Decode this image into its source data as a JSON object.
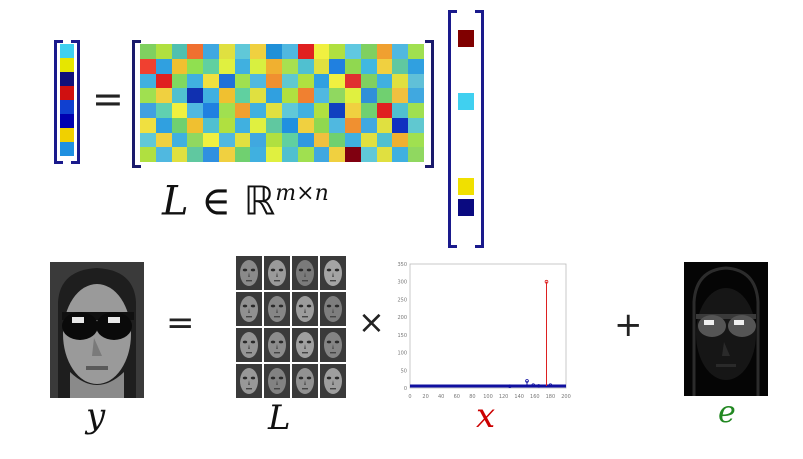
{
  "top_equation": {
    "equals_symbol": "=",
    "matrix_caption_var": "L",
    "matrix_caption_rel": "∈",
    "matrix_caption_space": "ℝ",
    "matrix_caption_exp": "m×n",
    "y_vector_colors": [
      "#3fd0f0",
      "#e6e600",
      "#10107a",
      "#d01010",
      "#1040d0",
      "#0000b0",
      "#f0d000",
      "#2090e0"
    ],
    "x_vector_colors": [
      "#800000",
      "#ffffff",
      "#ffffff",
      "#40d0f0",
      "#ffffff",
      "#ffffff",
      "#ffffff",
      "#f0e000",
      "#0a0a80"
    ],
    "matrix_colors": [
      "#7fd060",
      "#b0e040",
      "#50c0b0",
      "#f07030",
      "#40a8e0",
      "#e0e040",
      "#60c8d8",
      "#f0d040",
      "#2090d8",
      "#50b8e0",
      "#e02020",
      "#f0f040",
      "#b0e040",
      "#60c8e0",
      "#7fd060",
      "#f0a030",
      "#50b8e0",
      "#a0e050",
      "#f04030",
      "#30a0e0",
      "#f0c030",
      "#90e050",
      "#60d0a0",
      "#e0f040",
      "#40b0e0",
      "#d8f040",
      "#f0b030",
      "#a8e050",
      "#50c0d0",
      "#e0e040",
      "#2080e0",
      "#90d850",
      "#40b8e0",
      "#f0d040",
      "#60c8a0",
      "#30a0e0",
      "#40b0e0",
      "#e02020",
      "#80d860",
      "#40b0e0",
      "#f0e040",
      "#2070d8",
      "#a0e050",
      "#50b8e0",
      "#f09030",
      "#60c8d0",
      "#b0e040",
      "#30a0e0",
      "#f0f040",
      "#e03030",
      "#80d060",
      "#40b0e0",
      "#e0e040",
      "#60c0d8",
      "#a0e050",
      "#f0d040",
      "#50c0d0",
      "#1030b0",
      "#40b0e0",
      "#f0c030",
      "#60d0a0",
      "#e0e040",
      "#30a0e0",
      "#b0e040",
      "#f08030",
      "#50b8e0",
      "#90d860",
      "#e0f040",
      "#3090d8",
      "#70d070",
      "#f0c040",
      "#40a8e0",
      "#40a0e0",
      "#60d0b0",
      "#f0f040",
      "#50b8e0",
      "#2080e0",
      "#a0e050",
      "#f0a030",
      "#40b0e0",
      "#e0e040",
      "#60c8d8",
      "#40b0e0",
      "#b0e040",
      "#1040c0",
      "#f0d040",
      "#70d070",
      "#e02020",
      "#50c0d0",
      "#a0e050",
      "#f0e040",
      "#30a0e0",
      "#70d070",
      "#f0c030",
      "#50c0d0",
      "#b0e040",
      "#40b0e0",
      "#e0f040",
      "#60c8a0",
      "#2090e0",
      "#f0d040",
      "#90d850",
      "#50b8e0",
      "#f09030",
      "#40a8e0",
      "#e0e040",
      "#1030c0",
      "#60c8d0",
      "#60c8d8",
      "#f0d040",
      "#40b0e0",
      "#90d860",
      "#f0f040",
      "#50b8e0",
      "#e0e040",
      "#40a8e0",
      "#b0e040",
      "#60d0a0",
      "#3098e0",
      "#f0c040",
      "#70d070",
      "#40b0e0",
      "#e0e040",
      "#50c0d0",
      "#f0b030",
      "#a0e050",
      "#b0e040",
      "#50b8e0",
      "#e0e040",
      "#60c8a0",
      "#3090e0",
      "#f0d040",
      "#70d070",
      "#40b0e0",
      "#e0f040",
      "#50c0d0",
      "#a0e050",
      "#40a8e0",
      "#f0d040",
      "#800010",
      "#60c8d8",
      "#e0e040",
      "#40b0e0",
      "#90d860"
    ]
  },
  "bottom_equation": {
    "equals_symbol": "=",
    "times_symbol": "×",
    "plus_symbol": "+",
    "y_label": "y",
    "L_label": "L",
    "x_label": "x",
    "e_label": "e",
    "x_label_color": "#cc0000",
    "e_label_color": "#228822"
  },
  "chart_data": {
    "type": "scatter",
    "title": "",
    "xlabel": "",
    "ylabel": "",
    "xlim": [
      0,
      200
    ],
    "ylim": [
      0,
      350
    ],
    "x_ticks": [
      "0",
      "20",
      "40",
      "60",
      "80",
      "100",
      "120",
      "140",
      "160",
      "180",
      "200"
    ],
    "y_ticks": [
      "0",
      "50",
      "100",
      "150",
      "200",
      "250",
      "300",
      "350"
    ],
    "series": [
      {
        "x": [
          0,
          200
        ],
        "y": [
          0,
          0
        ],
        "color": "#1010a0",
        "style": "baseline"
      },
      {
        "x": [
          128,
          150,
          158,
          165,
          180
        ],
        "y": [
          5,
          20,
          8,
          6,
          8
        ],
        "color": "#1010a0",
        "style": "stem"
      },
      {
        "x": [
          175
        ],
        "y": [
          300
        ],
        "color": "#dd2020",
        "style": "stem"
      }
    ]
  }
}
